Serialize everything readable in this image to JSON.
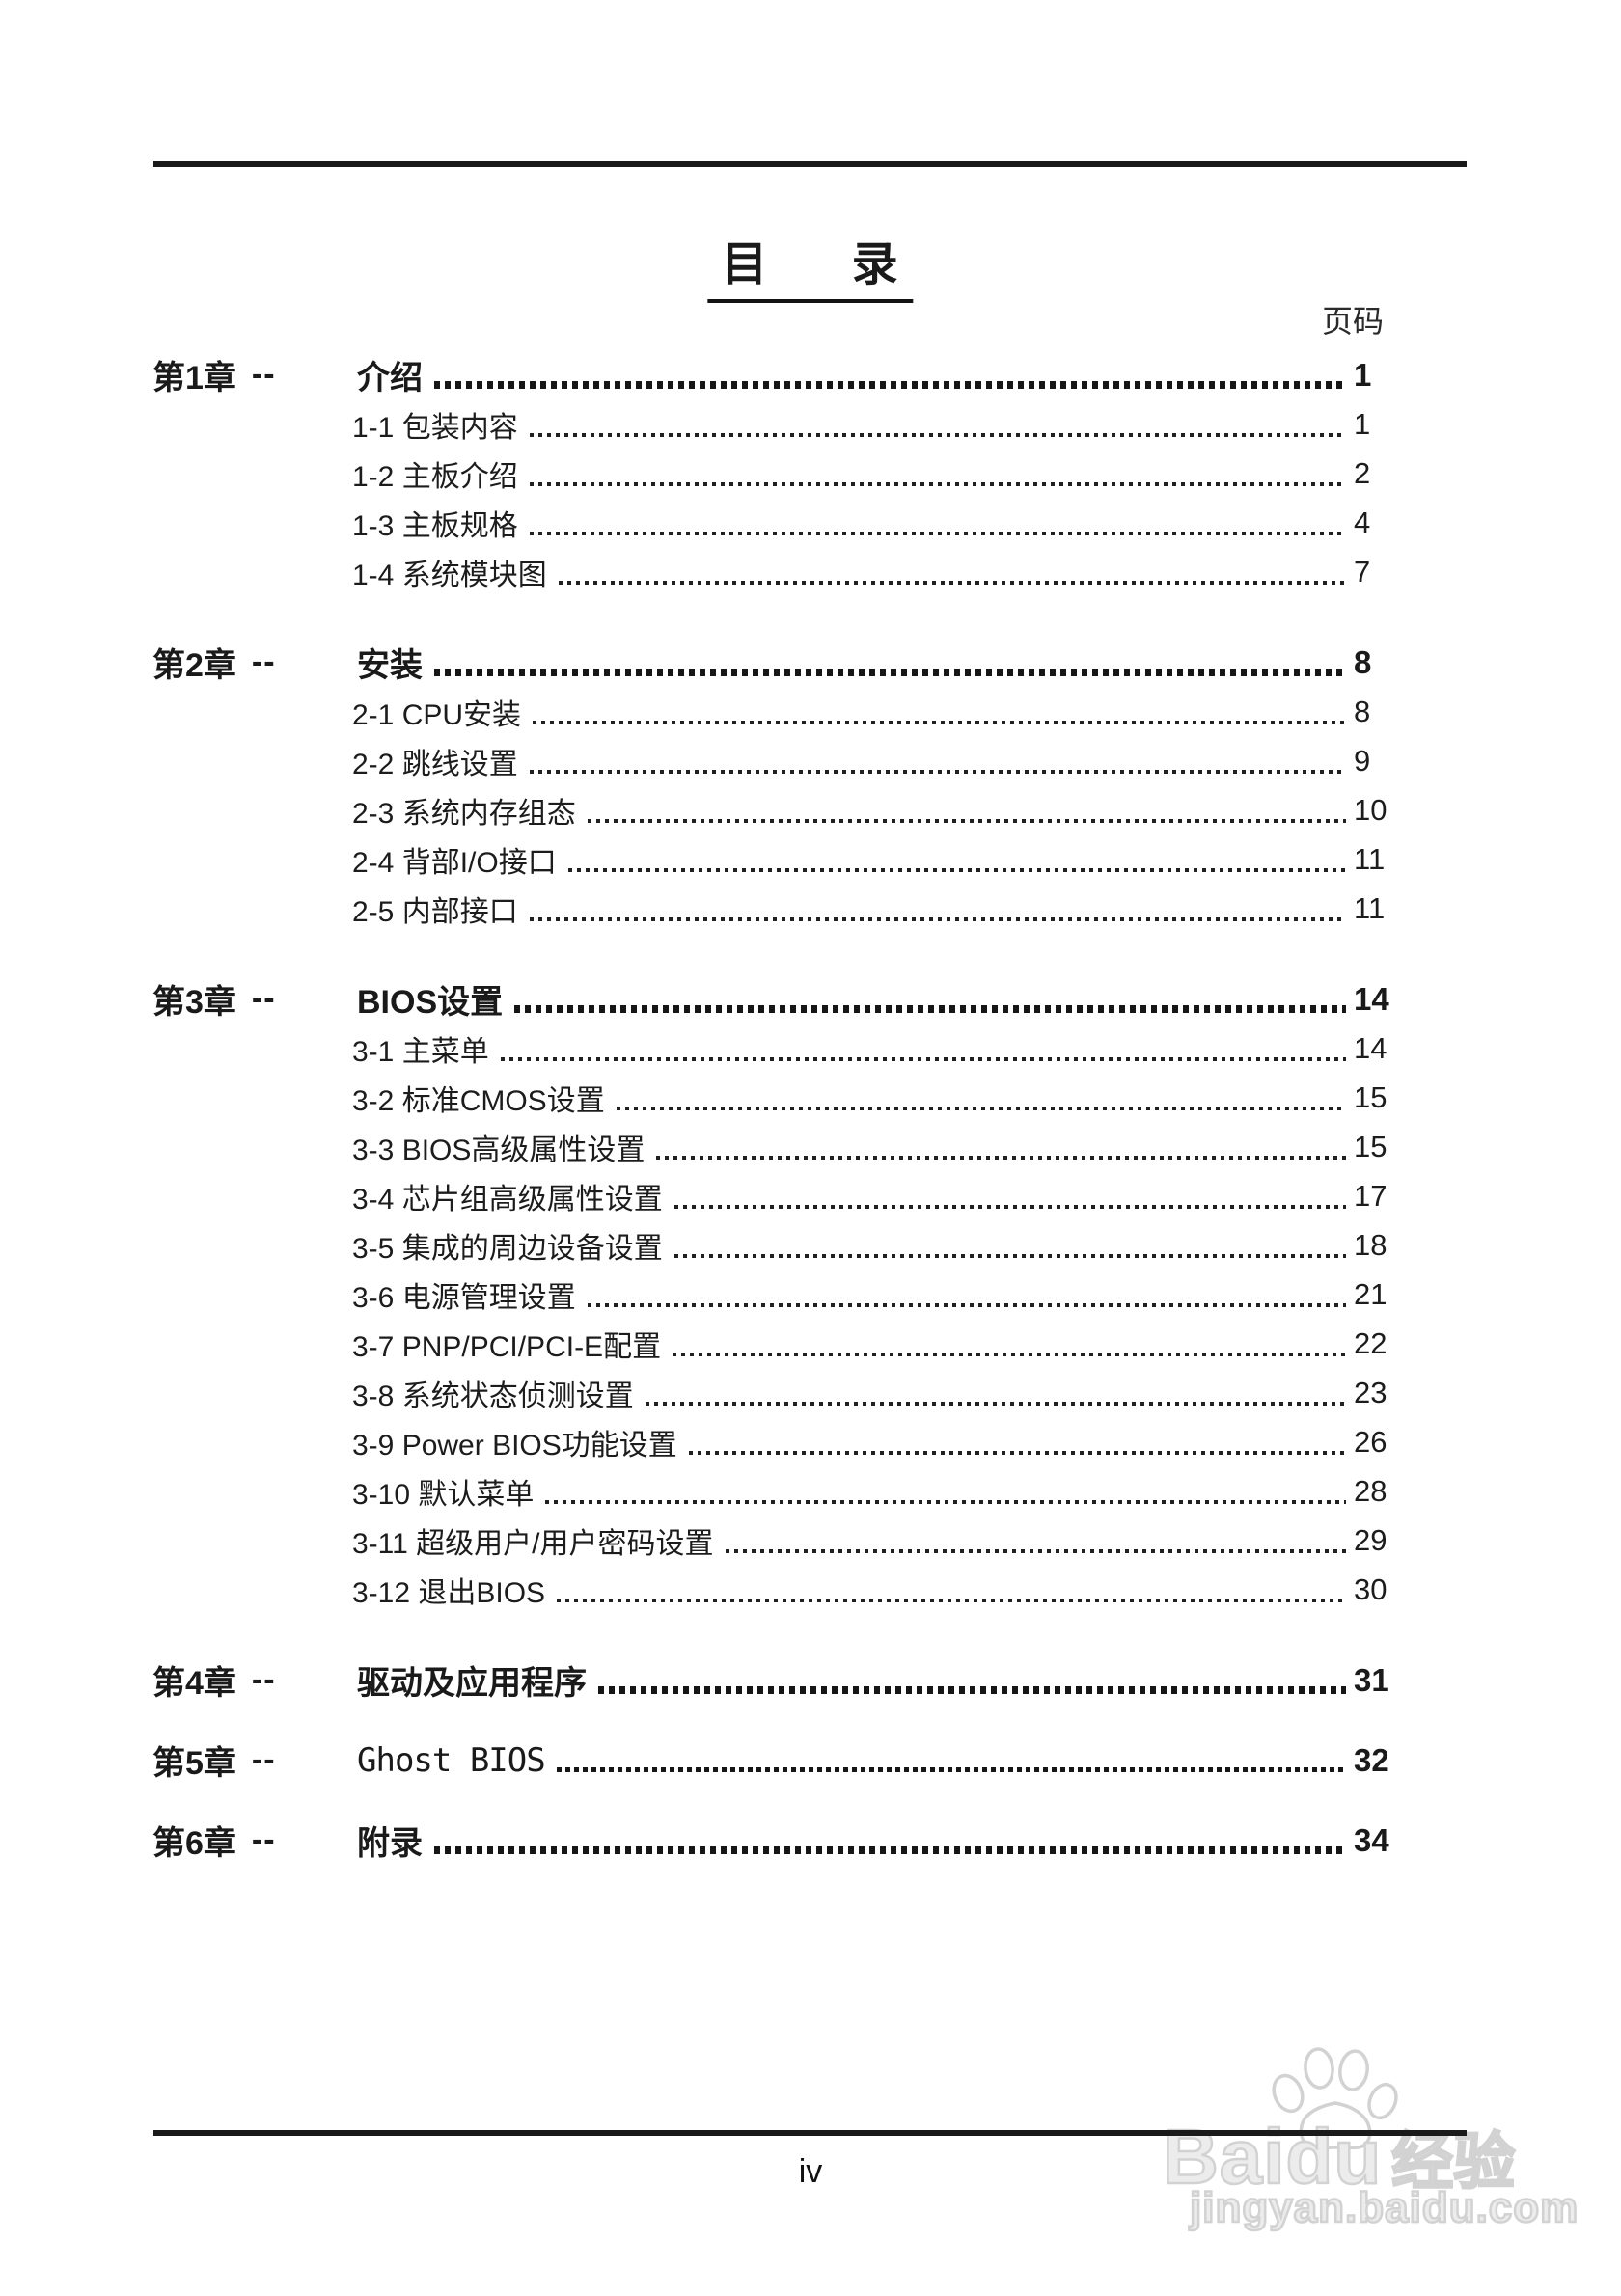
{
  "page": {
    "title": "目 录",
    "page_column_label": "页码",
    "folio": "iv"
  },
  "watermark": {
    "brand_latin": "Baidu",
    "brand_cn": "经验",
    "url": "jingyan.baidu.com",
    "color": "#d2d2d2"
  },
  "toc": [
    {
      "no": "第1章",
      "dash": "--",
      "title": "介绍",
      "page": "1",
      "items": [
        {
          "title": "1-1 包装内容",
          "page": "1"
        },
        {
          "title": "1-2 主板介绍",
          "page": "2"
        },
        {
          "title": "1-3 主板规格",
          "page": "4"
        },
        {
          "title": "1-4 系统模块图",
          "page": "7"
        }
      ]
    },
    {
      "no": "第2章",
      "dash": "--",
      "title": "安装",
      "page": "8",
      "items": [
        {
          "title": "2-1 CPU安装",
          "page": "8"
        },
        {
          "title": "2-2 跳线设置",
          "page": "9"
        },
        {
          "title": "2-3 系统内存组态",
          "page": "10"
        },
        {
          "title": "2-4 背部I/O接口",
          "page": "11"
        },
        {
          "title": "2-5 内部接口",
          "page": "11"
        }
      ]
    },
    {
      "no": "第3章",
      "dash": "--",
      "title": "BIOS设置",
      "page": "14",
      "items": [
        {
          "title": "3-1 主菜单",
          "page": "14"
        },
        {
          "title": "3-2 标准CMOS设置",
          "page": "15"
        },
        {
          "title": "3-3 BIOS高级属性设置",
          "page": "15"
        },
        {
          "title": "3-4 芯片组高级属性设置",
          "page": "17"
        },
        {
          "title": "3-5 集成的周边设备设置",
          "page": "18"
        },
        {
          "title": "3-6 电源管理设置",
          "page": "21"
        },
        {
          "title": "3-7 PNP/PCI/PCI-E配置",
          "page": "22"
        },
        {
          "title": "3-8 系统状态侦测设置",
          "page": "23"
        },
        {
          "title": "3-9 Power BIOS功能设置",
          "page": "26"
        },
        {
          "title": "3-10 默认菜单",
          "page": "28"
        },
        {
          "title": "3-11 超级用户/用户密码设置",
          "page": "29"
        },
        {
          "title": "3-12 退出BIOS",
          "page": "30"
        }
      ]
    },
    {
      "no": "第4章",
      "dash": "--",
      "title": "驱动及应用程序",
      "page": "31",
      "items": []
    },
    {
      "no": "第5章",
      "dash": "--",
      "title": "Ghost BIOS",
      "page": "32",
      "items": []
    },
    {
      "no": "第6章",
      "dash": "--",
      "title": "附录",
      "page": "34",
      "items": []
    }
  ]
}
